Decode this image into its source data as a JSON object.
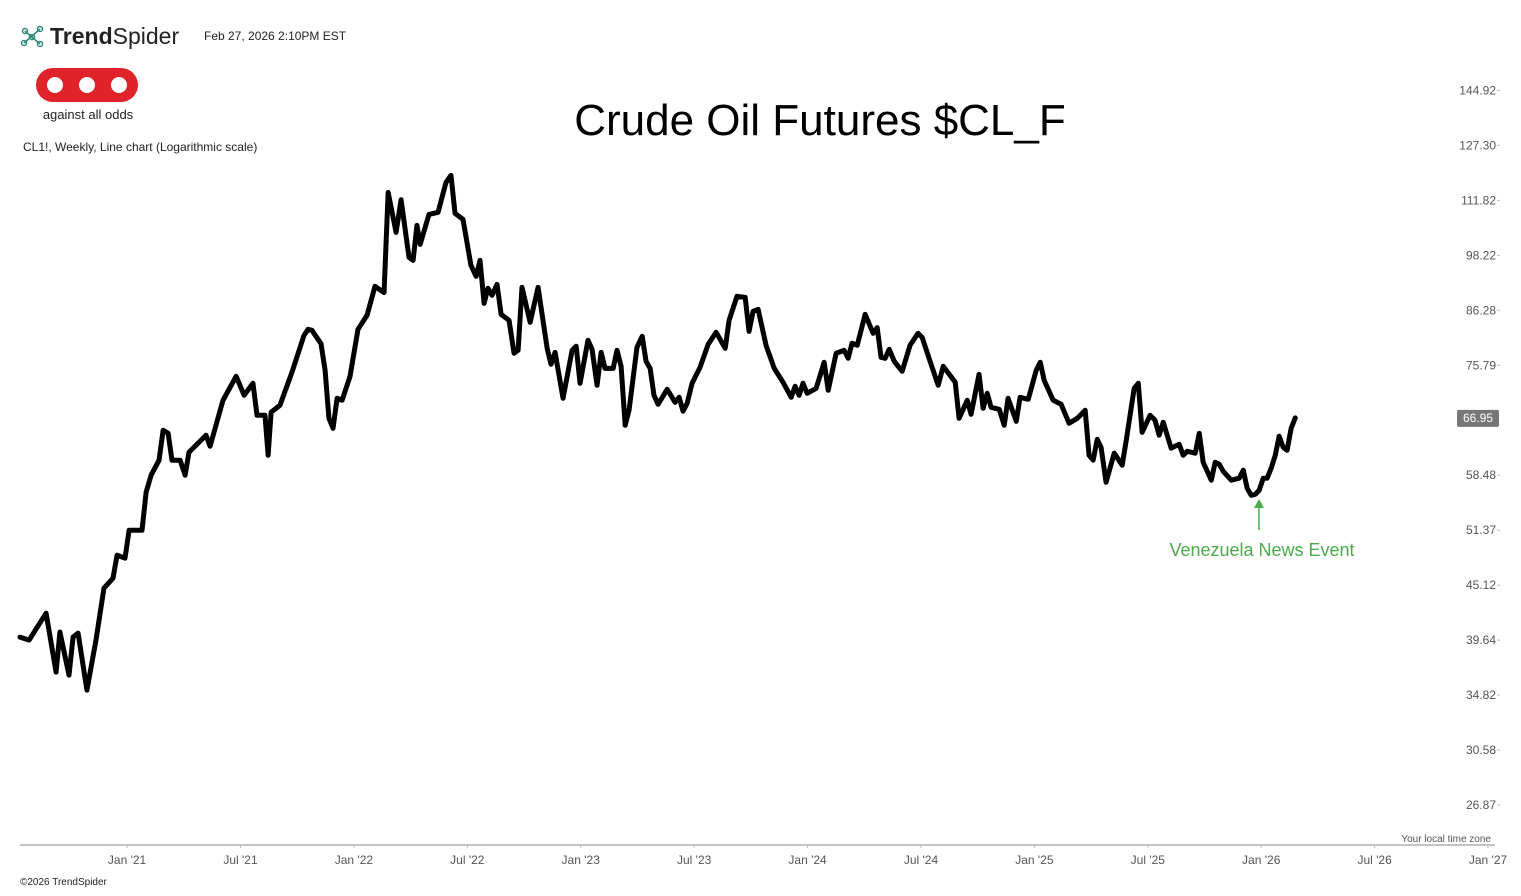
{
  "header": {
    "brand_bold": "Trend",
    "brand_light": "Spider",
    "timestamp": "Feb 27, 2026 2:10PM EST",
    "logo_text": "against all odds"
  },
  "footer": {
    "timezone": "Your local time zone",
    "copyright": "©2026 TrendSpider"
  },
  "chart_data": {
    "type": "line",
    "title": "Crude Oil Futures $CL_F",
    "subtitle": "CL1!, Weekly, Line chart (Logarithmic scale)",
    "annotation": "Venezuela News Event",
    "annotation_color": "#4caa4c",
    "log_scale": true,
    "grid": false,
    "xlim": [
      2020.528,
      2027.11
    ],
    "ylim": [
      24.45,
      155.7
    ],
    "xticks": [
      {
        "value": 2021.0,
        "label": "Jan '21"
      },
      {
        "value": 2021.5,
        "label": "Jul '21"
      },
      {
        "value": 2022.0,
        "label": "Jan '22"
      },
      {
        "value": 2022.5,
        "label": "Jul '22"
      },
      {
        "value": 2023.0,
        "label": "Jan '23"
      },
      {
        "value": 2023.5,
        "label": "Jul '23"
      },
      {
        "value": 2024.0,
        "label": "Jan '24"
      },
      {
        "value": 2024.5,
        "label": "Jul '24"
      },
      {
        "value": 2025.0,
        "label": "Jan '25"
      },
      {
        "value": 2025.5,
        "label": "Jul '25"
      },
      {
        "value": 2026.0,
        "label": "Jan '26"
      },
      {
        "value": 2026.5,
        "label": "Jul '26"
      },
      {
        "value": 2027.0,
        "label": "Jan '27"
      }
    ],
    "yticks": [
      26.87,
      30.58,
      34.82,
      39.64,
      45.12,
      51.37,
      58.48,
      75.79,
      86.28,
      98.22,
      111.82,
      {
        "value": 127.3,
        "label": "127.30"
      },
      144.92
    ],
    "x": [
      2020.528,
      2020.568,
      2020.643,
      2020.687,
      2020.704,
      2020.744,
      2020.762,
      2020.784,
      2020.823,
      2020.863,
      2020.898,
      2020.938,
      2020.956,
      2020.991,
      2021.009,
      2021.066,
      2021.084,
      2021.106,
      2021.141,
      2021.159,
      2021.181,
      2021.198,
      2021.234,
      2021.256,
      2021.273,
      2021.348,
      2021.366,
      2021.423,
      2021.481,
      2021.516,
      2021.555,
      2021.573,
      2021.608,
      2021.622,
      2021.635,
      2021.674,
      2021.727,
      2021.78,
      2021.798,
      2021.815,
      2021.855,
      2021.873,
      2021.89,
      2021.908,
      2021.926,
      2021.948,
      2021.983,
      2022.018,
      2022.058,
      2022.093,
      2022.133,
      2022.151,
      2022.186,
      2022.208,
      2022.243,
      2022.261,
      2022.278,
      2022.292,
      2022.331,
      2022.371,
      2022.406,
      2022.428,
      2022.446,
      2022.481,
      2022.516,
      2022.539,
      2022.556,
      2022.574,
      2022.591,
      2022.609,
      2022.631,
      2022.649,
      2022.684,
      2022.706,
      2022.724,
      2022.741,
      2022.777,
      2022.812,
      2022.852,
      2022.869,
      2022.887,
      2022.922,
      2022.962,
      2022.98,
      2022.997,
      2023.032,
      2023.05,
      2023.072,
      2023.09,
      2023.107,
      2023.143,
      2023.16,
      2023.178,
      2023.196,
      2023.213,
      2023.248,
      2023.271,
      2023.288,
      2023.306,
      2023.323,
      2023.341,
      2023.381,
      2023.416,
      2023.434,
      2023.451,
      2023.469,
      2023.491,
      2023.526,
      2023.562,
      2023.597,
      2023.637,
      2023.654,
      2023.689,
      2023.725,
      2023.742,
      2023.76,
      2023.782,
      2023.817,
      2023.853,
      2023.892,
      2023.928,
      2023.945,
      2023.963,
      2023.98,
      2023.998,
      2024.038,
      2024.073,
      2024.091,
      2024.126,
      2024.161,
      2024.179,
      2024.196,
      2024.219,
      2024.254,
      2024.289,
      2024.307,
      2024.324,
      2024.342,
      2024.36,
      2024.382,
      2024.417,
      2024.452,
      2024.487,
      2024.505,
      2024.54,
      2024.576,
      2024.598,
      2024.651,
      2024.668,
      2024.704,
      2024.721,
      2024.756,
      2024.774,
      2024.792,
      2024.809,
      2024.845,
      2024.867,
      2024.884,
      2024.92,
      2024.937,
      2024.973,
      2025.008,
      2025.026,
      2025.043,
      2025.083,
      2025.118,
      2025.153,
      2025.189,
      2025.224,
      2025.241,
      2025.259,
      2025.277,
      2025.294,
      2025.316,
      2025.352,
      2025.387,
      2025.405,
      2025.44,
      2025.458,
      2025.475,
      2025.51,
      2025.532,
      2025.55,
      2025.568,
      2025.603,
      2025.638,
      2025.656,
      2025.674,
      2025.709,
      2025.727,
      2025.744,
      2025.78,
      2025.797,
      2025.815,
      2025.832,
      2025.868,
      2025.903,
      2025.921,
      2025.938,
      2025.956,
      2025.974,
      2025.991,
      2026.009,
      2026.026,
      2026.044,
      2026.062,
      2026.079,
      2026.097,
      2026.114,
      2026.132,
      2026.15
    ],
    "series": [
      {
        "name": "CL1!",
        "color": "#000000",
        "values": [
          39.92,
          39.64,
          42.24,
          36.76,
          40.4,
          36.5,
          39.92,
          40.3,
          35.23,
          39.64,
          44.8,
          45.87,
          48.43,
          48.09,
          51.37,
          51.37,
          56.18,
          58.48,
          60.59,
          65.02,
          64.56,
          60.59,
          60.59,
          58.48,
          61.74,
          64.26,
          62.62,
          69.79,
          73.85,
          70.61,
          72.64,
          67.36,
          67.36,
          61.3,
          67.84,
          68.97,
          74.55,
          81.33,
          82.5,
          82.3,
          79.75,
          74.9,
          66.88,
          65.33,
          70.12,
          69.79,
          73.85,
          82.5,
          85.27,
          91.3,
          89.96,
          113.94,
          103.69,
          111.98,
          97.76,
          97.07,
          105.42,
          100.8,
          108.18,
          108.7,
          116.66,
          118.62,
          108.44,
          106.92,
          95.93,
          93.47,
          97.07,
          87.71,
          90.88,
          89.39,
          91.73,
          85.47,
          84.27,
          77.97,
          78.52,
          91.08,
          83.87,
          91.08,
          78.89,
          75.97,
          78.13,
          70.12,
          78.52,
          79.26,
          72.64,
          80.4,
          78.7,
          72.3,
          78.13,
          75.25,
          75.25,
          78.52,
          75.61,
          65.79,
          68.16,
          79.07,
          81.16,
          76.51,
          75.25,
          70.61,
          69.13,
          71.62,
          69.45,
          70.28,
          68.0,
          69.29,
          72.64,
          75.43,
          79.64,
          81.92,
          78.89,
          84.27,
          89.18,
          88.96,
          82.1,
          86.08,
          86.48,
          79.45,
          75.25,
          72.81,
          70.28,
          72.13,
          70.61,
          72.64,
          70.95,
          71.79,
          76.33,
          71.45,
          77.97,
          78.52,
          77.05,
          79.83,
          79.45,
          85.47,
          81.72,
          82.84,
          77.23,
          77.05,
          78.7,
          76.51,
          74.72,
          79.45,
          81.73,
          80.97,
          76.51,
          72.3,
          75.61,
          72.81,
          66.88,
          69.79,
          67.52,
          74.2,
          68.48,
          70.95,
          68.64,
          68.32,
          65.79,
          70.12,
          66.41,
          70.28,
          69.95,
          74.9,
          76.33,
          73.15,
          69.79,
          69.13,
          66.1,
          66.88,
          68.16,
          61.3,
          60.59,
          63.65,
          62.46,
          57.52,
          61.6,
          59.88,
          63.5,
          71.79,
          72.64,
          64.71,
          67.36,
          66.57,
          64.26,
          66.26,
          62.33,
          62.91,
          61.3,
          61.88,
          61.6,
          64.56,
          60.3,
          57.8,
          60.3,
          60.02,
          59.04,
          57.8,
          58.07,
          59.18,
          56.71,
          55.78,
          55.91,
          56.44,
          58.07,
          58.07,
          59.46,
          61.3,
          64.11,
          62.46,
          62.02,
          65.33,
          66.95
        ]
      }
    ]
  }
}
